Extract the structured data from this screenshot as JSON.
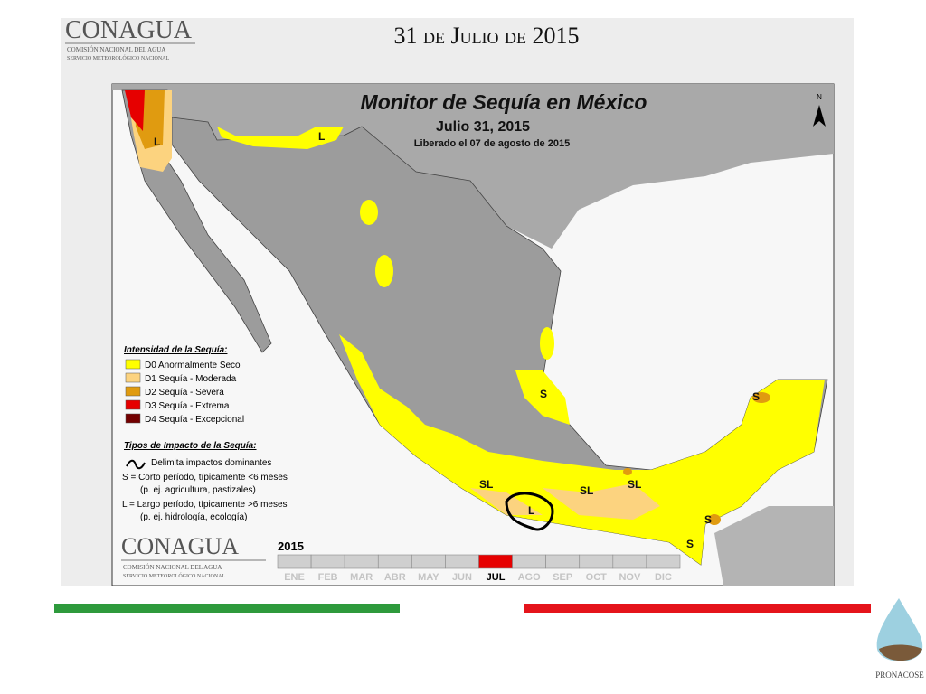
{
  "header": {
    "logo": {
      "name": "CONAGUA",
      "line1": "COMISIÓN NACIONAL DEL AGUA",
      "line2": "SERVICIO METEOROLÓGICO NACIONAL"
    },
    "title": "31 de Julio de 2015"
  },
  "map": {
    "title": "Monitor de Sequía en México",
    "date": "Julio 31, 2015",
    "released": "Liberado el 07 de agosto de 2015",
    "north": "N",
    "labels": [
      "L",
      "L",
      "S",
      "S",
      "SL",
      "SL",
      "SL",
      "L",
      "S",
      "S"
    ],
    "legend": {
      "title": "Intensidad de la Sequía:",
      "items": [
        {
          "label": "D0 Anormalmente Seco",
          "color": "#ffff00"
        },
        {
          "label": "D1 Sequía - Moderada",
          "color": "#fcd37f"
        },
        {
          "label": "D2 Sequía - Severa",
          "color": "#e09b10"
        },
        {
          "label": "D3 Sequía - Extrema",
          "color": "#e60000"
        },
        {
          "label": "D4 Sequía - Excepcional",
          "color": "#730000"
        }
      ]
    },
    "impact": {
      "title": "Tipos de Impacto de la Sequía:",
      "items": [
        "Delimita impactos dominantes",
        "S = Corto período, típicamente <6 meses",
        "(p. ej. agricultura, pastizales)",
        "L = Largo período, típicamente >6 meses",
        "(p. ej. hidrología, ecología)"
      ]
    },
    "logo": {
      "name": "CONAGUA",
      "line1": "COMISIÓN NACIONAL DEL AGUA",
      "line2": "SERVICIO METEOROLÓGICO NACIONAL"
    },
    "timeline": {
      "year": "2015",
      "months": [
        "ENE",
        "FEB",
        "MAR",
        "ABR",
        "MAY",
        "JUN",
        "JUL",
        "AGO",
        "SEP",
        "OCT",
        "NOV",
        "DIC"
      ],
      "current": "JUL"
    }
  },
  "footer": {
    "logo": "PRONACOSE"
  }
}
